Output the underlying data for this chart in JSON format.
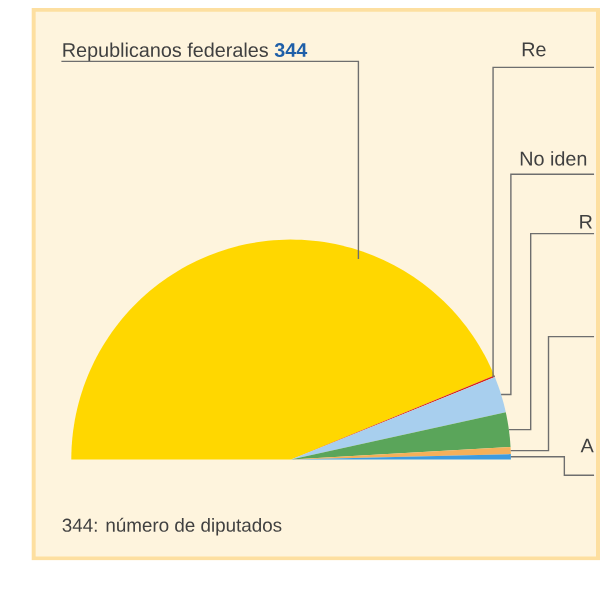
{
  "chart_data": {
    "type": "pie",
    "categories": [
      "Republicanos federales",
      "Re",
      "No iden",
      "R",
      null,
      "A"
    ],
    "values": [
      344,
      1,
      21,
      20,
      4,
      3
    ],
    "value_labels": [
      "344",
      null,
      null,
      null,
      null,
      null
    ],
    "colors": [
      "#ffd700",
      "#d7261e",
      "#a8cfee",
      "#5aa55a",
      "#f5b05a",
      "#3d9be0"
    ],
    "annotations": [
      "344: número de diputados"
    ]
  }
}
